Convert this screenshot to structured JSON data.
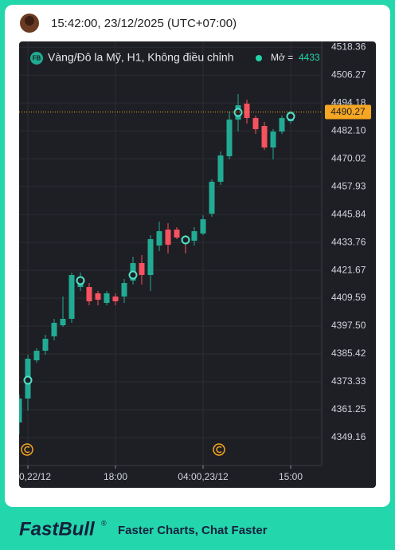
{
  "header": {
    "timestamp": "15:42:00, 23/12/2025 (UTC+07:00)"
  },
  "chart_data": {
    "type": "candlestick",
    "badge": "FB",
    "title": "Vàng/Đô la Mỹ, H1, Không điều chỉnh",
    "open_label": "Mở =",
    "open_value": 4433,
    "categories": [
      null,
      "0,22/12",
      null,
      null,
      null,
      null,
      null,
      null,
      null,
      null,
      null,
      "18:00",
      null,
      null,
      null,
      null,
      null,
      null,
      null,
      null,
      null,
      "04:00,23/12",
      null,
      null,
      null,
      null,
      null,
      null,
      null,
      null,
      null,
      "15:00"
    ],
    "open": [
      4355.72,
      4366.09,
      4382.66,
      4386.81,
      4393.03,
      4397.86,
      4400.63,
      4414.44,
      4414.44,
      4411.68,
      4407.54,
      4410.3,
      4410.3,
      4417.21,
      4424.81,
      4419.63,
      4432.41,
      4439.31,
      4439.31,
      4435.17,
      4434.48,
      4437.59,
      4446.22,
      4460.04,
      4471.09,
      4486.98,
      4493.89,
      4487.67,
      4484.22,
      4474.89,
      4481.8,
      4486.29
    ],
    "high": [
      4367.81,
      4385.08,
      4387.85,
      4393.72,
      4400.63,
      4410.3,
      4420.66,
      4420.66,
      4416.17,
      4412.72,
      4412.72,
      4411.68,
      4417.9,
      4427.57,
      4428.26,
      4436.9,
      4442.77,
      4442.08,
      4440.35,
      4436.9,
      4440.35,
      4445.53,
      4461.08,
      4473.16,
      4490.44,
      4498.04,
      4495.62,
      4488.71,
      4485.95,
      4482.84,
      4488.71,
      4490.78
    ],
    "low": [
      4350.54,
      4360.9,
      4381.63,
      4385.08,
      4391.3,
      4397.17,
      4398.9,
      4412.72,
      4406.5,
      4406.5,
      4406.5,
      4406.5,
      4407.54,
      4415.48,
      4415.48,
      4412.72,
      4429.99,
      4428.95,
      4435.17,
      4428.95,
      4432.41,
      4436.9,
      4444.84,
      4458.66,
      4469.71,
      4481.8,
      4485.26,
      4480.77,
      4473.86,
      4469.71,
      4480.77,
      4485.26
    ],
    "close": [
      4366.09,
      4383.36,
      4386.81,
      4391.99,
      4398.9,
      4400.63,
      4419.63,
      4418.59,
      4408.23,
      4408.92,
      4411.68,
      4408.23,
      4416.17,
      4424.81,
      4419.63,
      4435.17,
      4438.62,
      4432.75,
      4435.86,
      4433.44,
      4438.62,
      4443.8,
      4460.04,
      4471.44,
      4486.98,
      4493.2,
      4487.67,
      4482.84,
      4474.89,
      4481.8,
      4487.67,
      4490.27
    ],
    "up_color": "#22ab94",
    "down_color": "#f7525f",
    "last_price_color": "#f5a623",
    "markers": {
      "x": [
        1,
        7,
        13,
        19,
        25,
        31
      ],
      "values": [
        4374.03,
        4417.21,
        4419.63,
        4434.82,
        4490.09,
        4488.36
      ]
    },
    "ylim": [
      4337.07,
      4520.85
    ],
    "yticks": [
      4349.16,
      4361.25,
      4373.33,
      {
        "value": 4385.42,
        "label": "4385.42"
      },
      {
        "value": 4397.5,
        "label": "4397.50"
      },
      4409.59,
      4421.67,
      4433.76,
      4445.84,
      4457.93,
      4470.02,
      {
        "value": 4482.1,
        "label": "4482.10"
      },
      4494.18,
      4506.27,
      4518.36
    ],
    "grid": true
  },
  "footer": {
    "brand": "FastBull",
    "registered": "®",
    "tagline": "Faster Charts, Chat Faster"
  }
}
